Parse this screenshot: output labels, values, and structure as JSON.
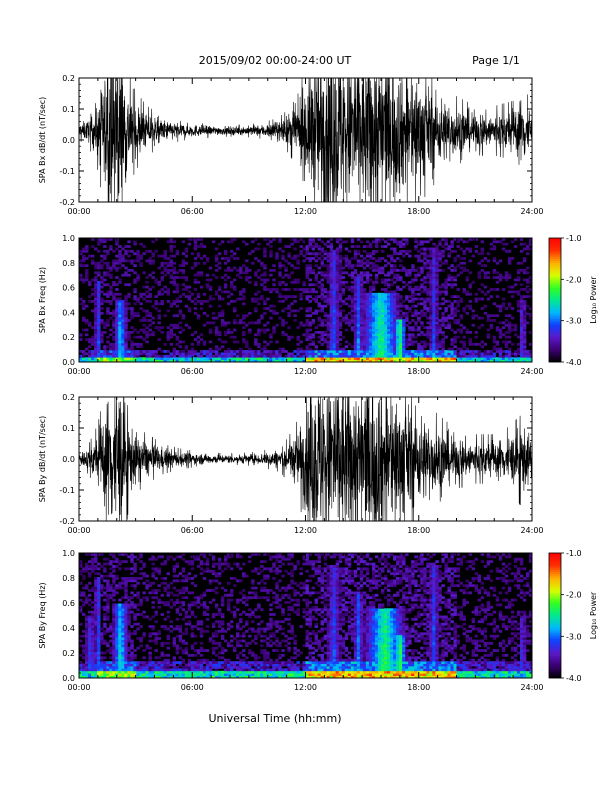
{
  "header": {
    "title": "2015/09/02  00:00-24:00 UT",
    "page": "Page 1/1"
  },
  "footer": {
    "xlabel": "Universal Time (hh:mm)"
  },
  "colorbar": {
    "label": "Log₁₀ Power",
    "ticks": [
      "-1.0",
      "-2.0",
      "-3.0",
      "-4.0"
    ],
    "tick_values": [
      -1.0,
      -2.0,
      -3.0,
      -4.0
    ],
    "range": [
      -4.0,
      -1.0
    ],
    "colors": [
      "#000000",
      "#3a0070",
      "#5a18c8",
      "#1040ff",
      "#00b8ff",
      "#00e890",
      "#30ff20",
      "#d8ff00",
      "#ffb000",
      "#ff3000",
      "#ff0000"
    ]
  },
  "chart_data": [
    {
      "type": "line",
      "title": "",
      "ylabel": "SPA Bx dB/dt (nT/sec)",
      "xlabel": "",
      "xlim": [
        0,
        24
      ],
      "ylim": [
        -0.2,
        0.2
      ],
      "x_ticks": [
        "00:00",
        "06:00",
        "12:00",
        "18:00",
        "24:00"
      ],
      "y_ticks": [
        "0.2",
        "0.1",
        "0.0",
        "-0.1",
        "-0.2"
      ],
      "y_tick_values": [
        0.2,
        0.1,
        0.0,
        -0.1,
        -0.2
      ],
      "series": [
        {
          "center": 0.03,
          "amplitude_envelope_x": [
            0,
            0.5,
            1.0,
            1.4,
            1.8,
            2.2,
            2.6,
            3.0,
            3.6,
            4.5,
            5.5,
            6.5,
            7.5,
            8.5,
            9.5,
            10.5,
            11.0,
            11.5,
            12.0,
            12.5,
            13.0,
            13.5,
            14.0,
            15.0,
            15.5,
            16.0,
            16.5,
            17.0,
            18.0,
            19.0,
            20.0,
            21.0,
            22.0,
            23.0,
            23.5,
            24.0
          ],
          "amplitude_envelope_y": [
            0.02,
            0.03,
            0.08,
            0.17,
            0.23,
            0.22,
            0.12,
            0.08,
            0.05,
            0.03,
            0.02,
            0.015,
            0.012,
            0.012,
            0.015,
            0.025,
            0.04,
            0.07,
            0.13,
            0.2,
            0.24,
            0.26,
            0.24,
            0.22,
            0.26,
            0.23,
            0.2,
            0.18,
            0.15,
            0.1,
            0.07,
            0.05,
            0.05,
            0.06,
            0.1,
            0.05
          ]
        }
      ]
    },
    {
      "type": "heatmap",
      "title": "",
      "ylabel": "SPA Bx Freq (Hz)",
      "xlabel": "",
      "xlim": [
        0,
        24
      ],
      "ylim": [
        0.0,
        1.0
      ],
      "x_ticks": [
        "00:00",
        "06:00",
        "12:00",
        "18:00",
        "24:00"
      ],
      "y_ticks": [
        "1.0",
        "0.8",
        "0.6",
        "0.4",
        "0.2",
        "0.0"
      ],
      "y_tick_values": [
        1.0,
        0.8,
        0.6,
        0.4,
        0.2,
        0.0
      ],
      "background_log10_power": -3.9,
      "low_frequency_band_hz": 0.04,
      "bursts": [
        {
          "t": 1.0,
          "width_h": 0.2,
          "fmax": 0.65,
          "level": -3.2
        },
        {
          "t": 2.2,
          "width_h": 0.4,
          "fmax": 0.5,
          "level": -2.9
        },
        {
          "t": 13.5,
          "width_h": 0.4,
          "fmax": 0.9,
          "level": -3.3
        },
        {
          "t": 14.8,
          "width_h": 0.3,
          "fmax": 0.7,
          "level": -3.2
        },
        {
          "t": 16.0,
          "width_h": 1.2,
          "fmax": 0.55,
          "level": -2.6
        },
        {
          "t": 17.0,
          "width_h": 0.4,
          "fmax": 0.35,
          "level": -2.4
        },
        {
          "t": 18.8,
          "width_h": 0.3,
          "fmax": 0.9,
          "level": -3.4
        },
        {
          "t": 23.5,
          "width_h": 0.2,
          "fmax": 0.5,
          "level": -3.3
        }
      ]
    },
    {
      "type": "line",
      "title": "",
      "ylabel": "SPA By dB/dt (nT/sec)",
      "xlabel": "",
      "xlim": [
        0,
        24
      ],
      "ylim": [
        -0.2,
        0.2
      ],
      "x_ticks": [
        "00:00",
        "06:00",
        "12:00",
        "18:00",
        "24:00"
      ],
      "y_ticks": [
        "0.2",
        "0.1",
        "0.0",
        "-0.1",
        "-0.2"
      ],
      "y_tick_values": [
        0.2,
        0.1,
        0.0,
        -0.1,
        -0.2
      ],
      "series": [
        {
          "center": 0.0,
          "amplitude_envelope_x": [
            0,
            0.5,
            1.0,
            1.4,
            1.8,
            2.2,
            2.6,
            3.0,
            3.6,
            4.5,
            5.5,
            6.5,
            7.5,
            8.5,
            9.5,
            10.5,
            11.0,
            11.5,
            12.0,
            12.5,
            13.0,
            13.5,
            14.0,
            15.0,
            15.5,
            16.0,
            16.5,
            17.0,
            18.0,
            19.0,
            20.0,
            21.0,
            22.0,
            23.0,
            23.5,
            24.0
          ],
          "amplitude_envelope_y": [
            0.02,
            0.03,
            0.07,
            0.15,
            0.22,
            0.21,
            0.11,
            0.07,
            0.05,
            0.03,
            0.02,
            0.015,
            0.012,
            0.012,
            0.015,
            0.025,
            0.04,
            0.07,
            0.14,
            0.22,
            0.25,
            0.25,
            0.23,
            0.21,
            0.24,
            0.22,
            0.19,
            0.17,
            0.13,
            0.09,
            0.06,
            0.05,
            0.05,
            0.07,
            0.1,
            0.05
          ]
        }
      ]
    },
    {
      "type": "heatmap",
      "title": "",
      "ylabel": "SPA By Freq (Hz)",
      "xlabel": "",
      "xlim": [
        0,
        24
      ],
      "ylim": [
        0.0,
        1.0
      ],
      "x_ticks": [
        "00:00",
        "06:00",
        "12:00",
        "18:00",
        "24:00"
      ],
      "y_ticks": [
        "1.0",
        "0.8",
        "0.6",
        "0.4",
        "0.2",
        "0.0"
      ],
      "y_tick_values": [
        1.0,
        0.8,
        0.6,
        0.4,
        0.2,
        0.0
      ],
      "background_log10_power": -3.85,
      "low_frequency_band_hz": 0.06,
      "bursts": [
        {
          "t": 0.6,
          "width_h": 0.3,
          "fmax": 0.5,
          "level": -3.3
        },
        {
          "t": 1.0,
          "width_h": 0.2,
          "fmax": 0.8,
          "level": -3.2
        },
        {
          "t": 2.2,
          "width_h": 0.5,
          "fmax": 0.6,
          "level": -2.8
        },
        {
          "t": 13.5,
          "width_h": 0.4,
          "fmax": 0.9,
          "level": -3.3
        },
        {
          "t": 14.8,
          "width_h": 0.3,
          "fmax": 0.7,
          "level": -3.2
        },
        {
          "t": 16.2,
          "width_h": 1.2,
          "fmax": 0.55,
          "level": -2.5
        },
        {
          "t": 17.0,
          "width_h": 0.4,
          "fmax": 0.35,
          "level": -2.3
        },
        {
          "t": 18.8,
          "width_h": 0.3,
          "fmax": 0.9,
          "level": -3.3
        },
        {
          "t": 23.5,
          "width_h": 0.2,
          "fmax": 0.5,
          "level": -3.3
        }
      ]
    }
  ]
}
